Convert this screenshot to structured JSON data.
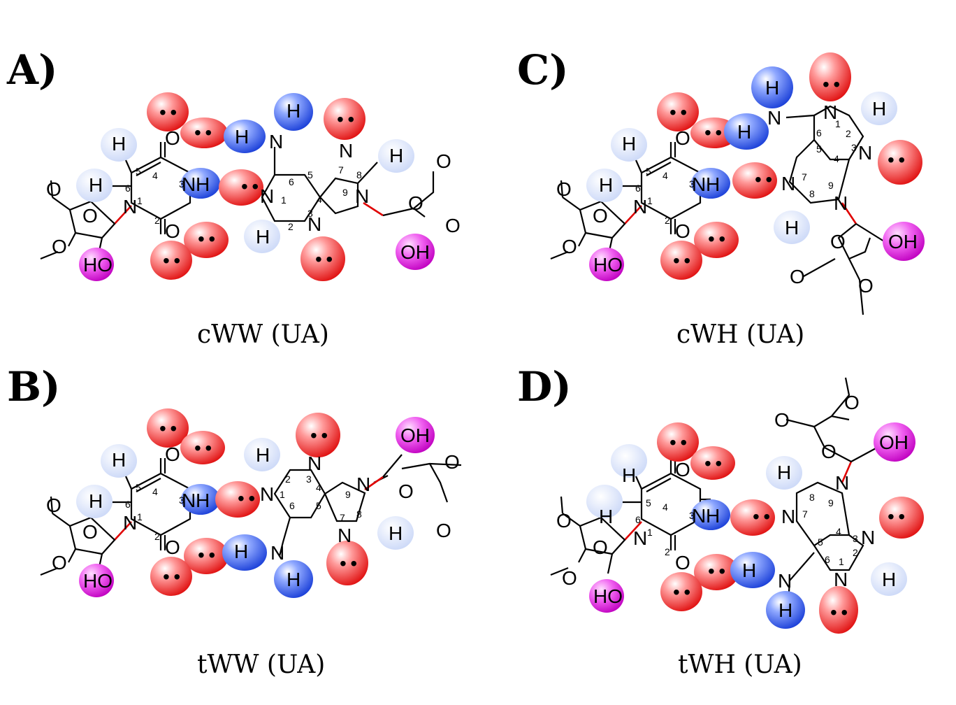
{
  "panels": [
    {
      "letter": "A)",
      "caption": "cWW (UA)"
    },
    {
      "letter": "B)",
      "caption": "tWW (UA)"
    },
    {
      "letter": "C)",
      "caption": "cWH (UA)"
    },
    {
      "letter": "D)",
      "caption": "tWH (UA)"
    }
  ],
  "atoms": {
    "H": "H",
    "N": "N",
    "O": "O",
    "OH": "OH",
    "HO": "HO",
    "lone_pair": "• •"
  },
  "ring_numbers": {
    "n1": "1",
    "n2": "2",
    "n3": "3",
    "n4": "4",
    "n5": "5",
    "n6": "6",
    "n7": "7",
    "n8": "8",
    "n9": "9"
  },
  "legend_colors": {
    "lone_pair_acceptor": "#ff3b3b",
    "amino_donor": "#3b68ff",
    "ch_donor": "#dde6fb",
    "ribose_2oh": "#e61ee6",
    "glycosidic_bond": "#e00000"
  }
}
